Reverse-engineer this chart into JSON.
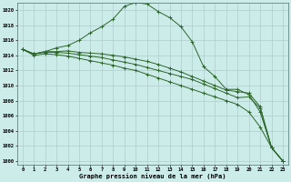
{
  "xlabel": "Graphe pression niveau de la mer (hPa)",
  "background_color": "#ccecea",
  "grid_color": "#b0cccc",
  "line_color": "#2d6629",
  "xlim": [
    -0.5,
    23.5
  ],
  "ylim": [
    999.5,
    1021.0
  ],
  "yticks": [
    1000,
    1002,
    1004,
    1006,
    1008,
    1010,
    1012,
    1014,
    1016,
    1018,
    1020
  ],
  "xticks": [
    0,
    1,
    2,
    3,
    4,
    5,
    6,
    7,
    8,
    9,
    10,
    11,
    12,
    13,
    14,
    15,
    16,
    17,
    18,
    19,
    20,
    21,
    22,
    23
  ],
  "series": [
    [
      1014.8,
      1014.2,
      1014.5,
      1015.0,
      1015.3,
      1016.0,
      1017.0,
      1017.8,
      1018.8,
      1020.5,
      1021.0,
      1020.8,
      1019.8,
      1019.0,
      1017.8,
      1015.8,
      1012.5,
      1011.2,
      1009.5,
      1009.5,
      1008.8,
      1006.5,
      1001.8,
      1000.0
    ],
    [
      1014.8,
      1014.2,
      1014.5,
      1014.5,
      1014.6,
      1014.4,
      1014.3,
      1014.2,
      1014.0,
      1013.8,
      1013.5,
      1013.2,
      1012.8,
      1012.3,
      1011.8,
      1011.2,
      1010.6,
      1010.0,
      1009.4,
      1009.2,
      1009.0,
      1007.2,
      1001.8,
      1000.0
    ],
    [
      1014.8,
      1014.2,
      1014.4,
      1014.4,
      1014.3,
      1014.1,
      1013.9,
      1013.7,
      1013.4,
      1013.1,
      1012.8,
      1012.4,
      1012.0,
      1011.6,
      1011.2,
      1010.8,
      1010.2,
      1009.6,
      1009.0,
      1008.4,
      1008.5,
      1007.0,
      1001.8,
      1000.0
    ],
    [
      1014.8,
      1014.0,
      1014.2,
      1014.1,
      1013.9,
      1013.6,
      1013.3,
      1013.0,
      1012.7,
      1012.3,
      1012.0,
      1011.5,
      1011.0,
      1010.5,
      1010.0,
      1009.5,
      1009.0,
      1008.5,
      1008.0,
      1007.5,
      1006.5,
      1004.5,
      1001.8,
      1000.0
    ]
  ]
}
